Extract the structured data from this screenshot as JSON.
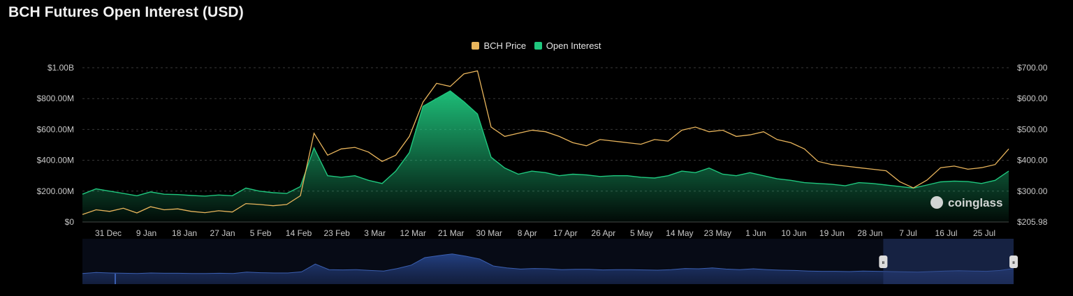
{
  "title": "BCH Futures Open Interest (USD)",
  "legend": [
    {
      "label": "BCH Price",
      "color": "#e9b55c"
    },
    {
      "label": "Open Interest",
      "color": "#1fc77e"
    }
  ],
  "watermark": {
    "text": "coinglass",
    "icon": "coinglass-logo-icon"
  },
  "colors": {
    "price": "#e9b55c",
    "oi": "#1fc77e",
    "navigator": "#3b5fb0"
  },
  "chart_data": {
    "type": "area",
    "x_ticks": [
      "31 Dec",
      "9 Jan",
      "18 Jan",
      "27 Jan",
      "5 Feb",
      "14 Feb",
      "23 Feb",
      "3 Mar",
      "12 Mar",
      "21 Mar",
      "30 Mar",
      "8 Apr",
      "17 Apr",
      "26 Apr",
      "5 May",
      "14 May",
      "23 May",
      "1 Jun",
      "10 Jun",
      "19 Jun",
      "28 Jun",
      "7 Jul",
      "16 Jul",
      "25 Jul"
    ],
    "y_left_ticks": [
      "$0",
      "$200.00M",
      "$400.00M",
      "$600.00M",
      "$800.00M",
      "$1.00B"
    ],
    "y_right_ticks": [
      "$205.98",
      "$300.00",
      "$400.00",
      "$500.00",
      "$600.00",
      "$700.00"
    ],
    "y_left_range": [
      0,
      1000000000
    ],
    "y_right_range": [
      205.98,
      700
    ],
    "grid": true,
    "legend_position": "top-center",
    "series": [
      {
        "name": "Open Interest",
        "axis": "left",
        "unit": "USD",
        "values": [
          180000000,
          215000000,
          200000000,
          185000000,
          170000000,
          195000000,
          180000000,
          178000000,
          172000000,
          168000000,
          175000000,
          170000000,
          220000000,
          200000000,
          190000000,
          185000000,
          230000000,
          480000000,
          300000000,
          290000000,
          300000000,
          270000000,
          250000000,
          330000000,
          450000000,
          750000000,
          800000000,
          850000000,
          780000000,
          700000000,
          420000000,
          350000000,
          310000000,
          330000000,
          320000000,
          300000000,
          310000000,
          305000000,
          295000000,
          300000000,
          300000000,
          290000000,
          285000000,
          300000000,
          330000000,
          320000000,
          350000000,
          310000000,
          300000000,
          320000000,
          300000000,
          280000000,
          270000000,
          255000000,
          250000000,
          245000000,
          235000000,
          255000000,
          250000000,
          240000000,
          230000000,
          220000000,
          240000000,
          260000000,
          265000000,
          262000000,
          250000000,
          270000000,
          330000000
        ]
      },
      {
        "name": "BCH Price",
        "axis": "right",
        "unit": "USD",
        "values": [
          230,
          245,
          240,
          250,
          235,
          255,
          245,
          248,
          240,
          236,
          242,
          238,
          265,
          262,
          258,
          262,
          290,
          490,
          420,
          440,
          445,
          430,
          400,
          420,
          480,
          590,
          650,
          640,
          680,
          690,
          510,
          480,
          490,
          500,
          495,
          480,
          460,
          450,
          470,
          465,
          460,
          455,
          470,
          465,
          500,
          510,
          495,
          500,
          480,
          485,
          495,
          470,
          460,
          440,
          400,
          390,
          385,
          380,
          375,
          370,
          335,
          315,
          340,
          380,
          385,
          375,
          380,
          390,
          440
        ]
      }
    ]
  },
  "navigator": {
    "handles": [
      "⏸",
      "⏸"
    ],
    "selection": [
      0.86,
      1.0
    ],
    "values": [
      0.28,
      0.32,
      0.3,
      0.29,
      0.28,
      0.3,
      0.29,
      0.29,
      0.28,
      0.28,
      0.29,
      0.28,
      0.33,
      0.31,
      0.3,
      0.3,
      0.34,
      0.62,
      0.42,
      0.41,
      0.42,
      0.39,
      0.37,
      0.46,
      0.58,
      0.85,
      0.92,
      0.98,
      0.9,
      0.8,
      0.55,
      0.48,
      0.44,
      0.46,
      0.45,
      0.42,
      0.43,
      0.43,
      0.41,
      0.42,
      0.42,
      0.41,
      0.4,
      0.42,
      0.46,
      0.45,
      0.48,
      0.44,
      0.42,
      0.45,
      0.42,
      0.4,
      0.39,
      0.37,
      0.36,
      0.36,
      0.35,
      0.37,
      0.36,
      0.35,
      0.34,
      0.33,
      0.35,
      0.37,
      0.38,
      0.37,
      0.36,
      0.39,
      0.46
    ]
  }
}
